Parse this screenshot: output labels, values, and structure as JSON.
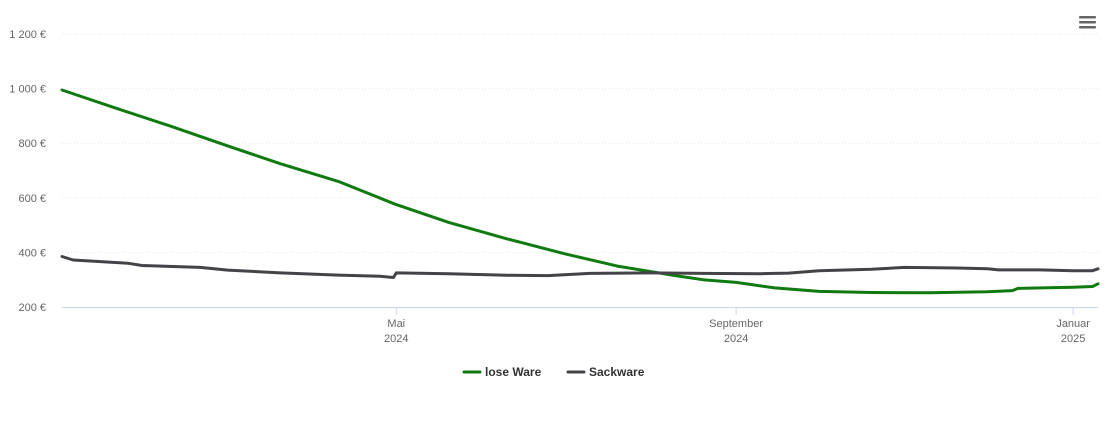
{
  "chart_data": {
    "type": "line",
    "title": "",
    "xlabel": "",
    "ylabel": "",
    "ylim": [
      200,
      1200
    ],
    "y_ticks": [
      200,
      400,
      600,
      800,
      1000,
      1200
    ],
    "y_tick_labels": [
      "200 €",
      "400 €",
      "600 €",
      "800 €",
      "1 000 €",
      "1 200 €"
    ],
    "x_range": [
      "2024-01-01",
      "2025-01-10"
    ],
    "x_ticks": [
      {
        "date": "2024-05-01",
        "label": "Mai",
        "year": "2024"
      },
      {
        "date": "2024-09-01",
        "label": "September",
        "year": "2024"
      },
      {
        "date": "2025-01-01",
        "label": "Januar",
        "year": "2025"
      }
    ],
    "grid": true,
    "legend_position": "bottom-center",
    "series": [
      {
        "name": "lose Ware",
        "color": "#0f7a0f",
        "points": [
          [
            "2024-01-01",
            995
          ],
          [
            "2024-01-20",
            930
          ],
          [
            "2024-02-10",
            860
          ],
          [
            "2024-03-01",
            790
          ],
          [
            "2024-03-20",
            725
          ],
          [
            "2024-04-10",
            660
          ],
          [
            "2024-05-01",
            575
          ],
          [
            "2024-05-20",
            510
          ],
          [
            "2024-06-10",
            450
          ],
          [
            "2024-07-01",
            395
          ],
          [
            "2024-07-20",
            350
          ],
          [
            "2024-08-10",
            315
          ],
          [
            "2024-08-20",
            300
          ],
          [
            "2024-09-01",
            290
          ],
          [
            "2024-09-15",
            270
          ],
          [
            "2024-10-01",
            257
          ],
          [
            "2024-10-20",
            253
          ],
          [
            "2024-11-10",
            252
          ],
          [
            "2024-12-01",
            256
          ],
          [
            "2024-12-10",
            260
          ],
          [
            "2024-12-12",
            268
          ],
          [
            "2025-01-01",
            272
          ],
          [
            "2025-01-08",
            275
          ],
          [
            "2025-01-10",
            285
          ]
        ]
      },
      {
        "name": "Sackware",
        "color": "#434348",
        "points": [
          [
            "2024-01-01",
            385
          ],
          [
            "2024-01-05",
            372
          ],
          [
            "2024-01-25",
            360
          ],
          [
            "2024-01-30",
            352
          ],
          [
            "2024-02-20",
            345
          ],
          [
            "2024-03-01",
            335
          ],
          [
            "2024-03-20",
            325
          ],
          [
            "2024-04-10",
            317
          ],
          [
            "2024-04-25",
            313
          ],
          [
            "2024-04-30",
            308
          ],
          [
            "2024-05-01",
            325
          ],
          [
            "2024-05-20",
            322
          ],
          [
            "2024-06-10",
            316
          ],
          [
            "2024-06-25",
            315
          ],
          [
            "2024-07-10",
            323
          ],
          [
            "2024-08-01",
            325
          ],
          [
            "2024-08-20",
            323
          ],
          [
            "2024-09-10",
            322
          ],
          [
            "2024-09-20",
            324
          ],
          [
            "2024-10-01",
            333
          ],
          [
            "2024-10-20",
            338
          ],
          [
            "2024-11-01",
            345
          ],
          [
            "2024-11-20",
            343
          ],
          [
            "2024-12-01",
            340
          ],
          [
            "2024-12-05",
            336
          ],
          [
            "2024-12-20",
            336
          ],
          [
            "2025-01-01",
            333
          ],
          [
            "2025-01-08",
            333
          ],
          [
            "2025-01-10",
            340
          ]
        ]
      }
    ]
  },
  "menu": {
    "icon": "hamburger-menu-icon"
  }
}
